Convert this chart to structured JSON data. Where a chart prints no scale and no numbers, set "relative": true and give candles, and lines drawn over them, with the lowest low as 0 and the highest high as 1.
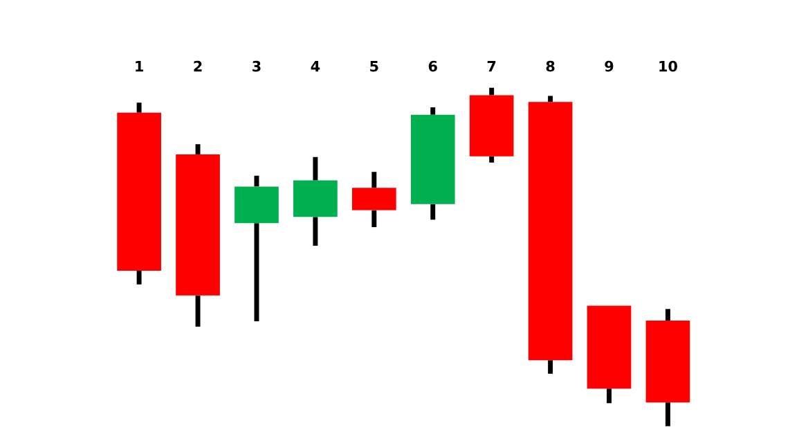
{
  "chart_data": {
    "type": "candlestick",
    "relative": true,
    "tick_labels": "x",
    "categories": [
      "1",
      "2",
      "3",
      "4",
      "5",
      "6",
      "7",
      "8",
      "9",
      "10"
    ],
    "ohlc": [
      [
        0.926,
        0.956,
        0.419,
        0.459
      ],
      [
        0.803,
        0.833,
        0.294,
        0.386
      ],
      [
        0.6,
        0.74,
        0.31,
        0.708
      ],
      [
        0.618,
        0.795,
        0.533,
        0.726
      ],
      [
        0.704,
        0.751,
        0.588,
        0.638
      ],
      [
        0.656,
        0.942,
        0.61,
        0.92
      ],
      [
        0.978,
        1,
        0.779,
        0.797
      ],
      [
        0.958,
        0.976,
        0.155,
        0.195
      ],
      [
        0.356,
        0.356,
        0.068,
        0.111
      ],
      [
        0.312,
        0.346,
        0,
        0.07
      ]
    ],
    "colors": [
      "#ff0000",
      "#ff0000",
      "#00b050",
      "#00b050",
      "#ff0000",
      "#00b050",
      "#ff0000",
      "#ff0000",
      "#ff0000",
      "#ff0000"
    ]
  }
}
